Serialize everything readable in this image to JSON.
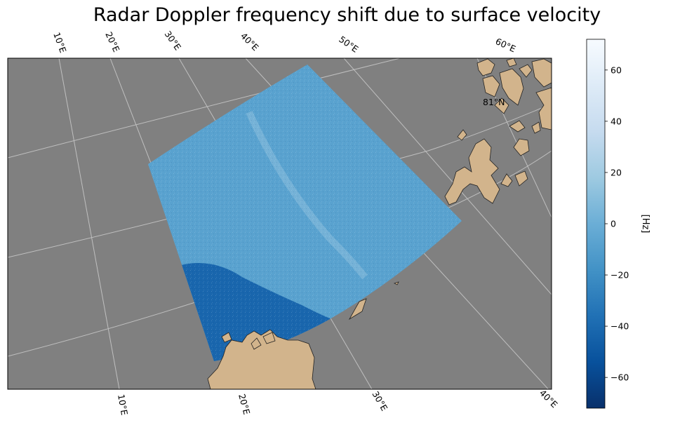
{
  "chart_data": {
    "type": "heatmap",
    "title": "Radar Doppler frequency shift due to surface velocity",
    "projection": "polar stereographic",
    "ocean_color": "#808080",
    "land_color": "#d2b48c",
    "gridline_color": "#bfbfbf",
    "colormap": [
      "#08306b",
      "#08519c",
      "#2171b5",
      "#4292c6",
      "#6baed6",
      "#9ecae1",
      "#c6dbef",
      "#deebf7",
      "#f7fbff"
    ],
    "colorbar": {
      "label": "[Hz]",
      "vmin": -72,
      "vmax": 72,
      "ticks": [
        60,
        40,
        20,
        0,
        -20,
        -40,
        -60
      ],
      "tick_labels": [
        "60",
        "40",
        "20",
        "0",
        "−20",
        "−40",
        "−60"
      ]
    },
    "top_lon_labels": [
      "10°E",
      "20°E",
      "30°E",
      "40°E",
      "50°E",
      "60°E"
    ],
    "bottom_lon_labels": [
      "10°E",
      "20°E",
      "30°E",
      "40°E"
    ],
    "lat_labels": [
      "81°N"
    ],
    "swath": {
      "typical_value_hz": -8,
      "lower_band_value_hz": -42,
      "bright_streak_value_hz": 15
    }
  }
}
